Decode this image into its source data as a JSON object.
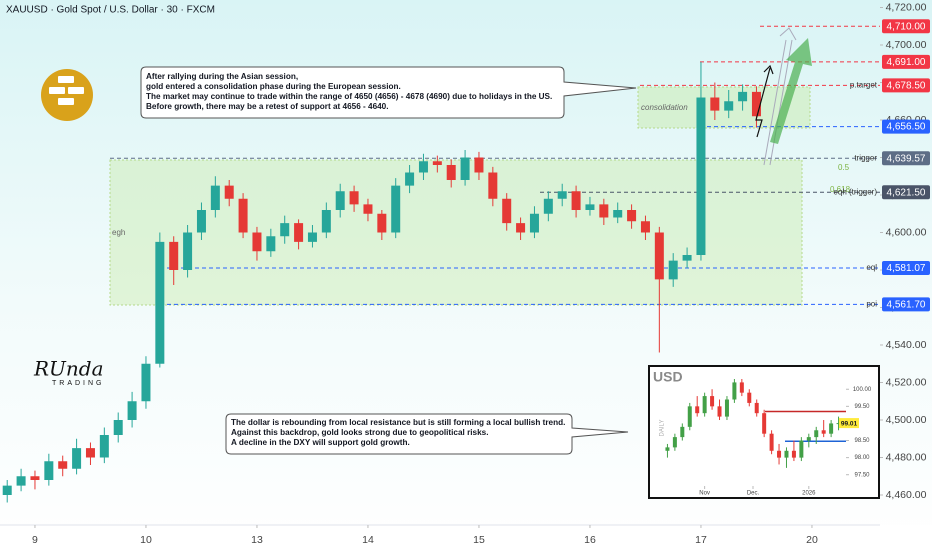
{
  "chart_data": [
    {
      "type": "candlestick",
      "title": "XAUUSD · Gold Spot / U.S. Dollar · 30 · FXCM",
      "up_color": "#26a69a",
      "down_color": "#e53935",
      "xlim": [
        -0.315,
        7.613
      ],
      "xticks": [
        {
          "value": 0,
          "label": "9"
        },
        {
          "value": 1,
          "label": "10"
        },
        {
          "value": 2,
          "label": "13"
        },
        {
          "value": 3,
          "label": "14"
        },
        {
          "value": 4,
          "label": "15"
        },
        {
          "value": 5,
          "label": "16"
        },
        {
          "value": 6,
          "label": "17"
        },
        {
          "value": 7,
          "label": "20"
        }
      ],
      "ylim": [
        4444,
        4724
      ],
      "yticks": [
        {
          "value": 4460,
          "label": "4,460.00"
        },
        {
          "value": 4480,
          "label": "4,480.00"
        },
        {
          "value": 4500,
          "label": "4,500.00"
        },
        {
          "value": 4520,
          "label": "4,520.00"
        },
        {
          "value": 4540,
          "label": "4,540.00"
        },
        {
          "value": 4560,
          "label": "4,560.00"
        },
        {
          "value": 4580,
          "label": "4,580.00"
        },
        {
          "value": 4600,
          "label": "4,600.00"
        },
        {
          "value": 4620,
          "label": "4,620.00"
        },
        {
          "value": 4640,
          "label": "4,640.00"
        },
        {
          "value": 4660,
          "label": "4,660.00"
        },
        {
          "value": 4680,
          "label": "4,680.00"
        },
        {
          "value": 4700,
          "label": "4,700.00"
        },
        {
          "value": 4720,
          "label": "4,720.00"
        }
      ],
      "x": [
        -0.25,
        -0.125,
        0,
        0.125,
        0.25,
        0.375,
        0.5,
        0.625,
        0.75,
        0.875,
        1,
        1.125,
        1.25,
        1.375,
        1.5,
        1.625,
        1.75,
        1.875,
        2,
        2.125,
        2.25,
        2.375,
        2.5,
        2.625,
        2.75,
        2.875,
        3,
        3.125,
        3.25,
        3.375,
        3.5,
        3.625,
        3.75,
        3.875,
        4,
        4.125,
        4.25,
        4.375,
        4.5,
        4.625,
        4.75,
        4.875,
        5,
        5.125,
        5.25,
        5.375,
        5.5,
        5.625,
        5.75,
        5.875,
        6,
        6.125,
        6.25,
        6.375,
        6.5
      ],
      "ohlc": [
        [
          4460,
          4468,
          4456,
          4465
        ],
        [
          4465,
          4474,
          4462,
          4470
        ],
        [
          4470,
          4473,
          4463,
          4468
        ],
        [
          4468,
          4482,
          4465,
          4478
        ],
        [
          4478,
          4481,
          4470,
          4474
        ],
        [
          4474,
          4490,
          4471,
          4485
        ],
        [
          4485,
          4488,
          4476,
          4480
        ],
        [
          4480,
          4496,
          4477,
          4492
        ],
        [
          4492,
          4504,
          4488,
          4500
        ],
        [
          4500,
          4515,
          4496,
          4510
        ],
        [
          4510,
          4534,
          4506,
          4530
        ],
        [
          4530,
          4600,
          4528,
          4595
        ],
        [
          4595,
          4598,
          4572,
          4580
        ],
        [
          4580,
          4604,
          4576,
          4600
        ],
        [
          4600,
          4616,
          4596,
          4612
        ],
        [
          4612,
          4630,
          4608,
          4625
        ],
        [
          4625,
          4628,
          4614,
          4618
        ],
        [
          4618,
          4621,
          4597,
          4600
        ],
        [
          4600,
          4603,
          4585,
          4590
        ],
        [
          4590,
          4602,
          4587,
          4598
        ],
        [
          4598,
          4609,
          4594,
          4605
        ],
        [
          4605,
          4607,
          4591,
          4595
        ],
        [
          4595,
          4604,
          4592,
          4600
        ],
        [
          4600,
          4616,
          4597,
          4612
        ],
        [
          4612,
          4626,
          4608,
          4622
        ],
        [
          4622,
          4625,
          4611,
          4615
        ],
        [
          4615,
          4618,
          4606,
          4610
        ],
        [
          4610,
          4612,
          4596,
          4600
        ],
        [
          4600,
          4629,
          4597,
          4625
        ],
        [
          4625,
          4636,
          4621,
          4632
        ],
        [
          4632,
          4642,
          4628,
          4638
        ],
        [
          4638,
          4641,
          4632,
          4636
        ],
        [
          4636,
          4639,
          4624,
          4628
        ],
        [
          4628,
          4644,
          4625,
          4640
        ],
        [
          4640,
          4643,
          4628,
          4632
        ],
        [
          4632,
          4635,
          4614,
          4618
        ],
        [
          4618,
          4621,
          4601,
          4605
        ],
        [
          4605,
          4608,
          4596,
          4600
        ],
        [
          4600,
          4614,
          4597,
          4610
        ],
        [
          4610,
          4622,
          4606,
          4618
        ],
        [
          4618,
          4626,
          4614,
          4622
        ],
        [
          4622,
          4625,
          4608,
          4612
        ],
        [
          4612,
          4619,
          4609,
          4615
        ],
        [
          4615,
          4618,
          4604,
          4608
        ],
        [
          4608,
          4616,
          4605,
          4612
        ],
        [
          4612,
          4615,
          4602,
          4606
        ],
        [
          4606,
          4609,
          4596,
          4600
        ],
        [
          4600,
          4603,
          4536,
          4575
        ],
        [
          4575,
          4589,
          4571,
          4585
        ],
        [
          4585,
          4592,
          4581,
          4588
        ],
        [
          4588,
          4691,
          4585,
          4672
        ],
        [
          4672,
          4680,
          4660,
          4665
        ],
        [
          4665,
          4676,
          4661,
          4670
        ],
        [
          4670,
          4679,
          4665,
          4675
        ],
        [
          4675,
          4678,
          4656,
          4662
        ]
      ],
      "levels": [
        {
          "value": 4710,
          "label": "4,710.00",
          "color": "#f23645"
        },
        {
          "value": 4691,
          "label": "4,691.00",
          "color": "#f23645"
        },
        {
          "value": 4678.5,
          "label": "4,678.50",
          "color": "#f23645",
          "tag": "p.target"
        },
        {
          "value": 4656.5,
          "label": "4,656.50",
          "color": "#2962ff"
        },
        {
          "value": 4639.57,
          "label": "4,639.57",
          "color": "#5d6d86",
          "tag": "trigger"
        },
        {
          "value": 4621.5,
          "label": "4,621.50",
          "color": "#4a5468",
          "tag": "eqh (trigger)"
        },
        {
          "value": 4581.07,
          "label": "4,581.07",
          "color": "#2962ff",
          "tag": "eql"
        },
        {
          "value": 4561.7,
          "label": "4,561.70",
          "color": "#2962ff",
          "tag": "poi"
        }
      ],
      "fib": [
        0.5,
        0.618
      ],
      "zones": [
        "egh",
        "consolidation"
      ],
      "logo": [
        "RUnda",
        "TRADING"
      ],
      "notes": [
        [
          "After rallying during the Asian session,",
          "gold entered a consolidation phase during the European session.",
          "The market may continue to trade within the range of 4650 (4656) - 4678 (4690) due to holidays in the US.",
          "Before growth, there may be a retest of support at 4656 - 4640."
        ],
        [
          "The dollar is rebounding from local resistance but is still forming a local bullish trend.",
          "Against this backdrop, gold looks strong due to geopolitical risks.",
          "A decline in the DXY will support gold growth."
        ]
      ]
    },
    {
      "type": "candlestick",
      "title": "USD",
      "axis_label": "DAILY",
      "up_color": "#43a047",
      "down_color": "#e53935",
      "xlim": [
        -1,
        24
      ],
      "xticks": [
        {
          "value": 5,
          "label": "Nov"
        },
        {
          "value": 11.5,
          "label": "Dec."
        },
        {
          "value": 19,
          "label": "2026"
        }
      ],
      "ylim": [
        97.17,
        100.68
      ],
      "yticks": [
        {
          "value": 100,
          "label": "100.00"
        },
        {
          "value": 99.5,
          "label": "99.50"
        },
        {
          "value": 98.5,
          "label": "98.50"
        },
        {
          "value": 98,
          "label": "98.00"
        },
        {
          "value": 97.5,
          "label": "97.50"
        }
      ],
      "x": [
        0,
        1,
        2,
        3,
        4,
        5,
        6,
        7,
        8,
        9,
        10,
        11,
        12,
        13,
        14,
        15,
        16,
        17,
        18,
        19,
        20,
        21,
        22,
        23
      ],
      "ohlc": [
        [
          98.2,
          98.4,
          98.0,
          98.3
        ],
        [
          98.3,
          98.7,
          98.2,
          98.6
        ],
        [
          98.6,
          99.0,
          98.5,
          98.9
        ],
        [
          98.9,
          99.6,
          98.8,
          99.5
        ],
        [
          99.5,
          99.8,
          99.2,
          99.3
        ],
        [
          99.3,
          99.9,
          99.2,
          99.8
        ],
        [
          99.8,
          100.0,
          99.4,
          99.5
        ],
        [
          99.5,
          99.7,
          99.1,
          99.2
        ],
        [
          99.2,
          99.8,
          99.1,
          99.7
        ],
        [
          99.7,
          100.3,
          99.6,
          100.2
        ],
        [
          100.2,
          100.3,
          99.8,
          99.9
        ],
        [
          99.9,
          100.0,
          99.5,
          99.6
        ],
        [
          99.6,
          99.7,
          99.2,
          99.3
        ],
        [
          99.3,
          99.4,
          98.6,
          98.7
        ],
        [
          98.7,
          98.8,
          98.1,
          98.2
        ],
        [
          98.2,
          98.4,
          97.8,
          98.0
        ],
        [
          98.0,
          98.3,
          97.7,
          98.2
        ],
        [
          98.2,
          98.5,
          97.9,
          98.0
        ],
        [
          98.0,
          98.6,
          97.9,
          98.5
        ],
        [
          98.5,
          98.7,
          98.3,
          98.6
        ],
        [
          98.6,
          98.9,
          98.4,
          98.8
        ],
        [
          98.8,
          99.1,
          98.6,
          98.7
        ],
        [
          98.7,
          99.1,
          98.6,
          99.0
        ],
        [
          99.0,
          99.2,
          98.8,
          99.01
        ]
      ],
      "levels": [
        {
          "value": 99.35,
          "color": "#c62828"
        },
        {
          "value": 98.48,
          "color": "#1e63d6"
        }
      ]
    }
  ]
}
